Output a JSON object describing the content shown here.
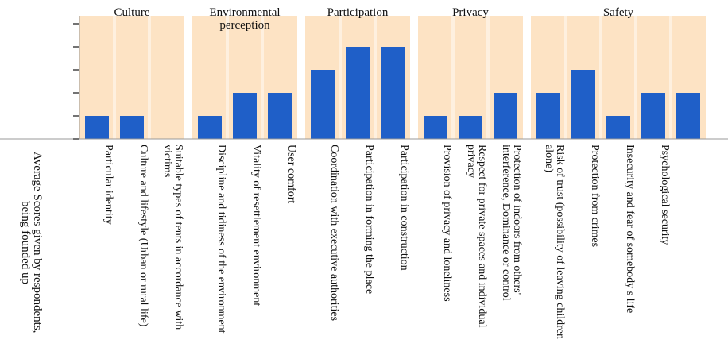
{
  "chart_data": {
    "type": "bar",
    "y_label": "Average Scores given by respondents, being founded up",
    "color": "#1f5fc8",
    "ylim": [
      0,
      5
    ],
    "yticks": [
      0,
      1,
      2,
      3,
      4,
      5
    ],
    "groups": [
      {
        "name": "Culture",
        "categories": [
          "Particular identity",
          "Culture and lifestyle (Urban or rural life)",
          "Suitable types of tents in accordance with victims"
        ],
        "values": [
          1,
          1,
          null
        ]
      },
      {
        "name": "Environmental perception",
        "categories": [
          "Discipline and tidiness of the environment",
          "Vitality of resettlement environment",
          "User comfort"
        ],
        "values": [
          1,
          2,
          2
        ]
      },
      {
        "name": "Participation",
        "categories": [
          "Coordination with executive authorities",
          "Participation in forming the place",
          "Participation in construction"
        ],
        "values": [
          3,
          4,
          4
        ]
      },
      {
        "name": "Privacy",
        "categories": [
          "Provision of privacy and loneliness",
          "Respect for private spaces and individual privacy",
          "Protection of indoors from others' interference, Dominance or control"
        ],
        "values": [
          1,
          1,
          2
        ]
      },
      {
        "name": "Safety",
        "categories": [
          "Risk of trust (possibility of leaving children alone)",
          "Protection from crimes",
          "Insecurity and fear of somebody s life",
          "Psychological security",
          null
        ],
        "values": [
          2,
          3,
          1,
          2,
          2
        ]
      }
    ]
  }
}
